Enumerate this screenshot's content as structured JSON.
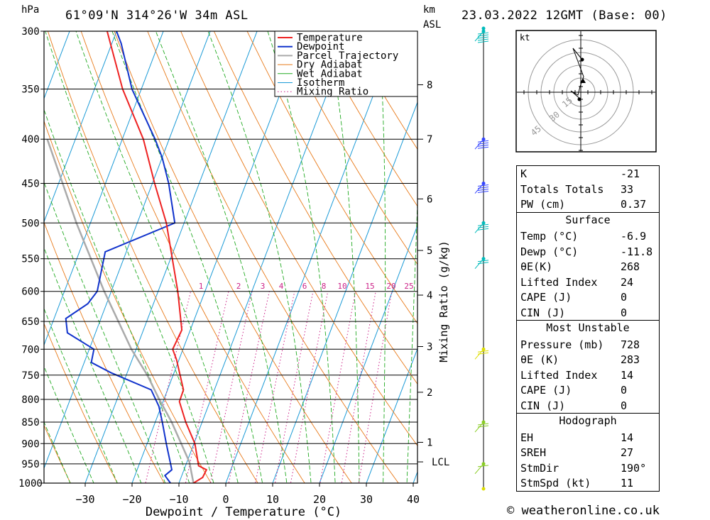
{
  "header": {
    "pressure_unit": "hPa",
    "location": "61°09'N  314°26'W  34m  ASL",
    "height_unit_line1": "km",
    "height_unit_line2": "ASL",
    "datetime": "23.03.2022  12GMT  (Base: 00)"
  },
  "footer": {
    "copyright": "© weatheronline.co.uk"
  },
  "hodograph": {
    "unit": "kt",
    "ring_labels": [
      "15",
      "30",
      "45"
    ]
  },
  "colors": {
    "temperature": "#ee2222",
    "dewpoint": "#1133cc",
    "parcel": "#aaaaaa",
    "dry_adiabat": "#e87a1a",
    "wet_adiabat": "#22aa22",
    "isotherm": "#1a9ad6",
    "mixing_ratio": "#cc2288"
  },
  "chart_data": {
    "type": "line",
    "subtype": "skew-T log-P",
    "xlabel": "Dewpoint / Temperature (°C)",
    "ylabel_left": "hPa",
    "ylabel_right": "Mixing Ratio (g/kg)",
    "xlim": [
      -40,
      40
    ],
    "ylim_hpa": [
      1000,
      300
    ],
    "x_ticks": [
      -30,
      -20,
      -10,
      0,
      10,
      20,
      30,
      40
    ],
    "pressure_levels": [
      300,
      350,
      400,
      450,
      500,
      550,
      600,
      650,
      700,
      750,
      800,
      850,
      900,
      950,
      1000
    ],
    "height_ticks_km": [
      {
        "label": "8",
        "hpa": 346
      },
      {
        "label": "7",
        "hpa": 400
      },
      {
        "label": "6",
        "hpa": 469
      },
      {
        "label": "5",
        "hpa": 538
      },
      {
        "label": "4",
        "hpa": 606
      },
      {
        "label": "3",
        "hpa": 695
      },
      {
        "label": "2",
        "hpa": 785
      },
      {
        "label": "1",
        "hpa": 897
      },
      {
        "label": "LCL",
        "hpa": 945
      }
    ],
    "mixing_ratio_labels": [
      "1",
      "2",
      "3",
      "4",
      "6",
      "8",
      "10",
      "15",
      "20",
      "25"
    ],
    "legend": [
      "Temperature",
      "Dewpoint",
      "Parcel Trajectory",
      "Dry Adiabat",
      "Wet Adiabat",
      "Isotherm",
      "Mixing Ratio"
    ],
    "series": [
      {
        "name": "Temperature",
        "points": [
          [
            1000,
            -6.9
          ],
          [
            985,
            -5.4
          ],
          [
            965,
            -5.2
          ],
          [
            955,
            -7.2
          ],
          [
            900,
            -9.8
          ],
          [
            850,
            -13.5
          ],
          [
            805,
            -16.5
          ],
          [
            780,
            -16.6
          ],
          [
            720,
            -20.5
          ],
          [
            700,
            -22.2
          ],
          [
            665,
            -21.8
          ],
          [
            600,
            -25.8
          ],
          [
            500,
            -33.8
          ],
          [
            450,
            -39.5
          ],
          [
            400,
            -45.5
          ],
          [
            350,
            -54.0
          ],
          [
            300,
            -62.0
          ]
        ]
      },
      {
        "name": "Dewpoint",
        "points": [
          [
            1000,
            -11.8
          ],
          [
            980,
            -13.6
          ],
          [
            965,
            -12.6
          ],
          [
            900,
            -15.9
          ],
          [
            850,
            -18.5
          ],
          [
            815,
            -20.5
          ],
          [
            780,
            -23.5
          ],
          [
            745,
            -33.5
          ],
          [
            725,
            -38.5
          ],
          [
            700,
            -39.0
          ],
          [
            670,
            -46.0
          ],
          [
            645,
            -47.5
          ],
          [
            620,
            -44.0
          ],
          [
            600,
            -43.0
          ],
          [
            540,
            -44.5
          ],
          [
            500,
            -32.0
          ],
          [
            450,
            -36.5
          ],
          [
            420,
            -40.0
          ],
          [
            400,
            -43.0
          ],
          [
            350,
            -52.0
          ],
          [
            310,
            -58.0
          ],
          [
            300,
            -60.0
          ]
        ]
      },
      {
        "name": "Parcel Trajectory",
        "points": [
          [
            1000,
            -6.9
          ],
          [
            945,
            -9.5
          ],
          [
            850,
            -16.5
          ],
          [
            800,
            -21.0
          ],
          [
            750,
            -25.5
          ],
          [
            700,
            -31.0
          ],
          [
            600,
            -41.5
          ],
          [
            500,
            -53.0
          ],
          [
            400,
            -66.0
          ]
        ]
      }
    ],
    "wind_profile": [
      {
        "hpa": 300,
        "speed_kt": 45
      },
      {
        "hpa": 400,
        "speed_kt": 35
      },
      {
        "hpa": 450,
        "speed_kt": 35
      },
      {
        "hpa": 500,
        "speed_kt": 25
      },
      {
        "hpa": 550,
        "speed_kt": 20
      },
      {
        "hpa": 700,
        "speed_kt": 15
      },
      {
        "hpa": 850,
        "speed_kt": 15
      },
      {
        "hpa": 950,
        "speed_kt": 5
      }
    ]
  },
  "indices": {
    "top": [
      {
        "label": "K",
        "value": "-21"
      },
      {
        "label": "Totals Totals",
        "value": "33"
      },
      {
        "label": "PW (cm)",
        "value": "0.37"
      }
    ],
    "surface": {
      "title": "Surface",
      "rows": [
        {
          "label": "Temp (°C)",
          "value": "-6.9"
        },
        {
          "label": "Dewp (°C)",
          "value": "-11.8"
        },
        {
          "label": "θE(K)",
          "value": "268"
        },
        {
          "label": "Lifted Index",
          "value": "24"
        },
        {
          "label": "CAPE (J)",
          "value": "0"
        },
        {
          "label": "CIN (J)",
          "value": "0"
        }
      ]
    },
    "most_unstable": {
      "title": "Most Unstable",
      "rows": [
        {
          "label": "Pressure (mb)",
          "value": "728"
        },
        {
          "label": "θE (K)",
          "value": "283"
        },
        {
          "label": "Lifted Index",
          "value": "14"
        },
        {
          "label": "CAPE (J)",
          "value": "0"
        },
        {
          "label": "CIN (J)",
          "value": "0"
        }
      ]
    },
    "hodograph": {
      "title": "Hodograph",
      "rows": [
        {
          "label": "EH",
          "value": "14"
        },
        {
          "label": "SREH",
          "value": "27"
        },
        {
          "label": "StmDir",
          "value": "190°"
        },
        {
          "label": "StmSpd (kt)",
          "value": "11"
        }
      ]
    }
  }
}
